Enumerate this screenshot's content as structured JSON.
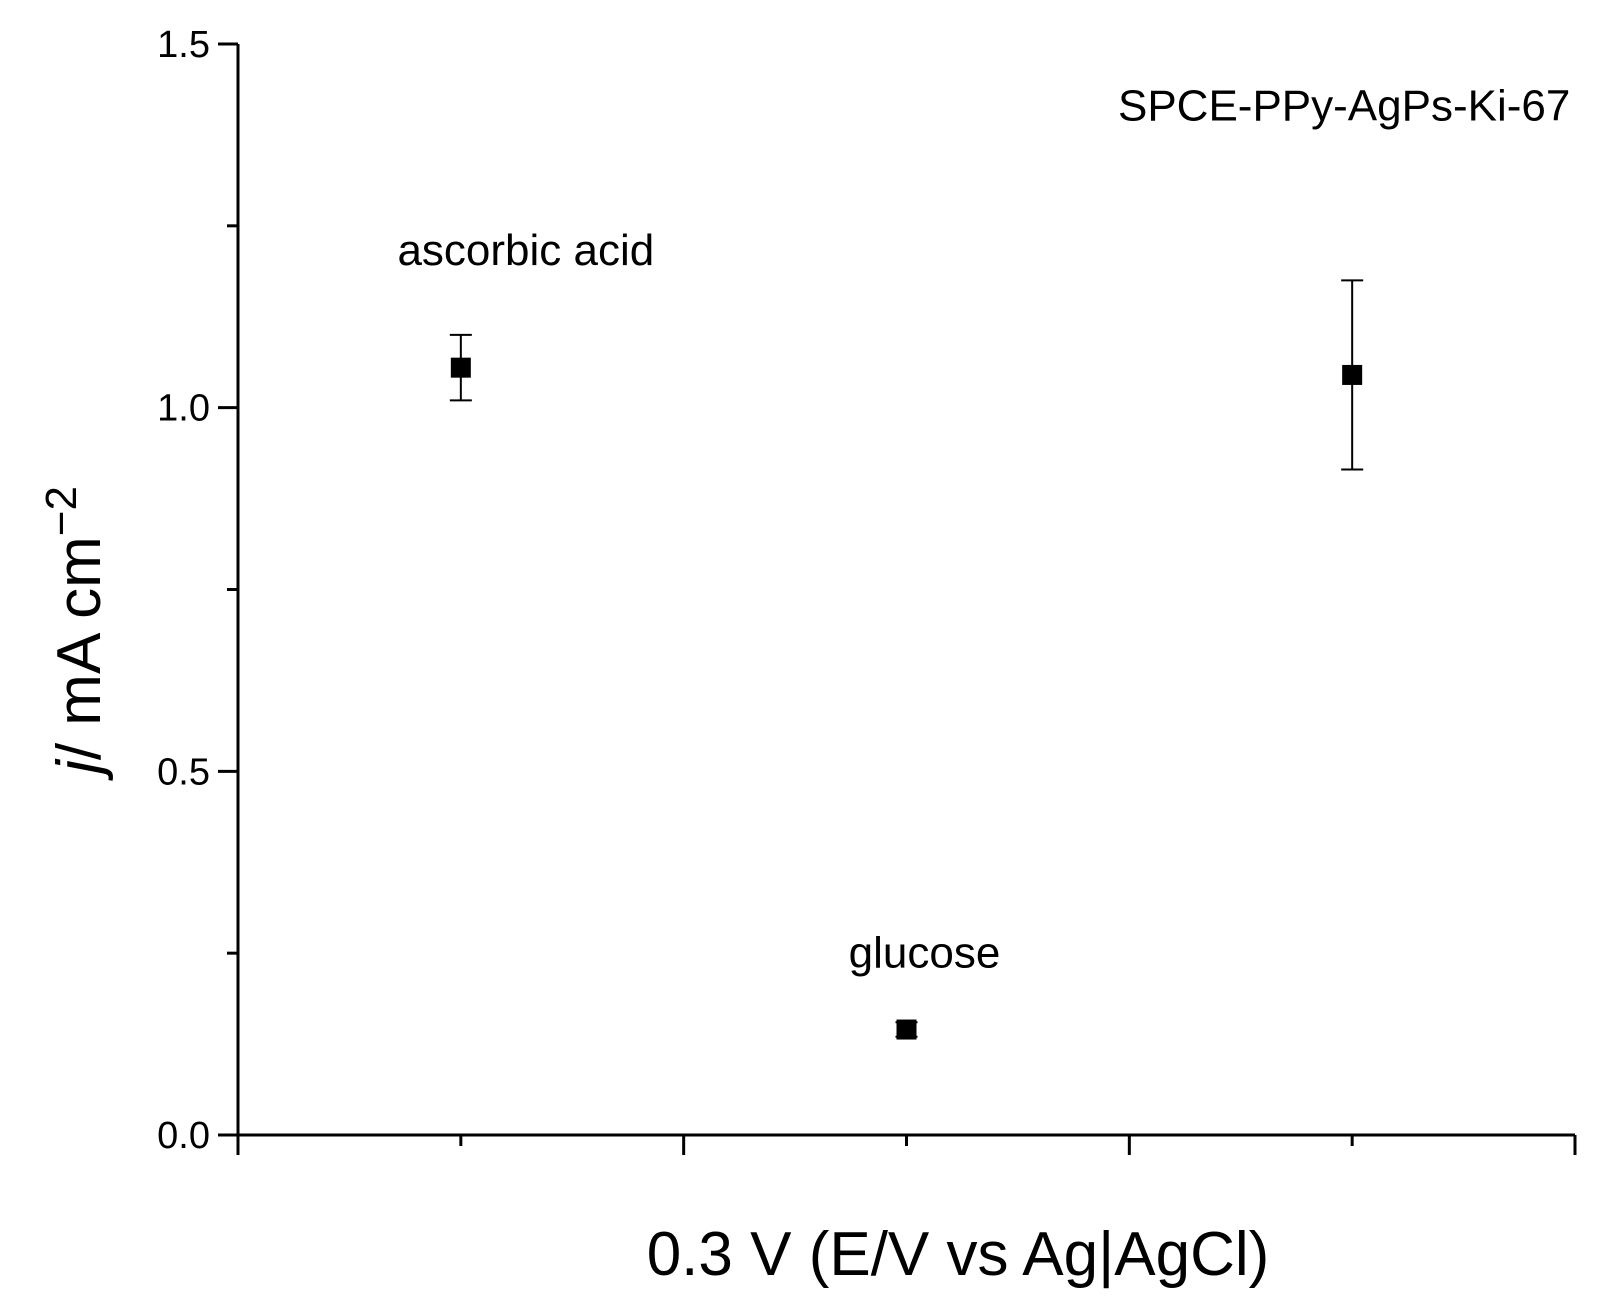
{
  "chart_data": {
    "type": "scatter",
    "xlabel": "0.3 V   (E/V  vs Ag|AgCl)",
    "ylabel": {
      "italic": "j",
      "rest": "/ mA cm",
      "sup": "−2"
    },
    "ylim": [
      0,
      1.5
    ],
    "xlim": [
      0,
      6
    ],
    "yticks_major": [
      "0.0",
      "0.5",
      "1.0",
      "1.5"
    ],
    "yticks_major_values": [
      0,
      0.5,
      1.0,
      1.5
    ],
    "yticks_minor_values": [
      0.25,
      0.75,
      1.25
    ],
    "xticks_major_values": [
      0,
      2,
      4,
      6
    ],
    "xticks_minor_values": [
      1,
      3,
      5
    ],
    "grid": false,
    "marker": "square",
    "color": "#000000",
    "points": [
      {
        "label": "ascorbic acid",
        "x": 1,
        "y": 1.055,
        "err": 0.045
      },
      {
        "label": "glucose",
        "x": 3,
        "y": 0.145,
        "err": 0.01
      },
      {
        "label": "SPCE-PPy-AgPs-Ki-67",
        "x": 5,
        "y": 1.045,
        "err": 0.13
      }
    ]
  }
}
